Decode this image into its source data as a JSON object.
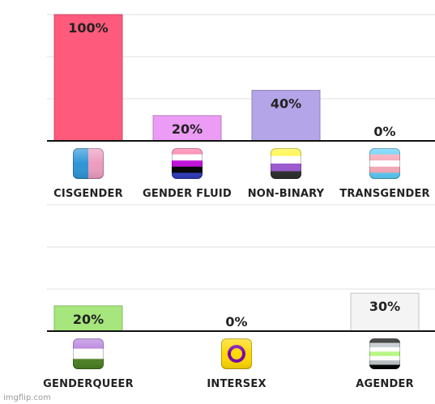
{
  "chart_data": [
    {
      "type": "bar",
      "categories": [
        "CISGENDER",
        "GENDER FLUID",
        "NON-BINARY",
        "TRANSGENDER"
      ],
      "values": [
        100,
        20,
        40,
        0
      ],
      "value_labels": [
        "100%",
        "20%",
        "40%",
        "0%"
      ],
      "bar_colors": [
        "#fe5a7c",
        "#ec9cf4",
        "#b4a4e8",
        "#ffffff"
      ],
      "icons": [
        "cisgender-flag-icon",
        "genderfluid-flag-icon",
        "nonbinary-flag-icon",
        "transgender-flag-icon"
      ],
      "ylim": [
        0,
        100
      ],
      "grid": true
    },
    {
      "type": "bar",
      "categories": [
        "GENDERQUEER",
        "INTERSEX",
        "AGENDER"
      ],
      "values": [
        20,
        0,
        30
      ],
      "value_labels": [
        "20%",
        "0%",
        "30%"
      ],
      "bar_colors": [
        "#a6e67c",
        "#ffffff",
        "#f4f4f4"
      ],
      "icons": [
        "genderqueer-flag-icon",
        "intersex-flag-icon",
        "agender-flag-icon"
      ],
      "ylim": [
        0,
        100
      ],
      "grid": true
    }
  ],
  "watermark": "imgflip.com"
}
